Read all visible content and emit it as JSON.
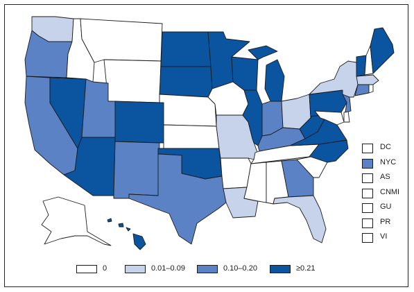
{
  "colors": {
    "class_0": "#ffffff",
    "class_1": "#c6d3ea",
    "class_2": "#5a82c4",
    "class_3": "#0b55a0",
    "border": "#1a1a1a"
  },
  "legend": [
    {
      "label": "0",
      "class": "0"
    },
    {
      "label": "0.01–0.09",
      "class": "1"
    },
    {
      "label": "0.10–0.20",
      "class": "2"
    },
    {
      "label": "≥0.21",
      "class": "3"
    }
  ],
  "territories": [
    {
      "label": "DC",
      "class": "0"
    },
    {
      "label": "NYC",
      "class": "2"
    },
    {
      "label": "AS",
      "class": "0"
    },
    {
      "label": "CNMI",
      "class": "0"
    },
    {
      "label": "GU",
      "class": "0"
    },
    {
      "label": "PR",
      "class": "0"
    },
    {
      "label": "VI",
      "class": "0"
    }
  ],
  "states": {
    "WA": "1",
    "OR": "2",
    "CA": "2",
    "NV": "3",
    "ID": "0",
    "MT": "0",
    "WY": "0",
    "UT": "2",
    "AZ": "3",
    "CO": "3",
    "NM": "2",
    "ND": "3",
    "SD": "3",
    "NE": "0",
    "KS": "0",
    "OK": "3",
    "TX": "2",
    "MN": "3",
    "IA": "0",
    "MO": "1",
    "AR": "0",
    "LA": "1",
    "WI": "3",
    "IL": "3",
    "MS": "0",
    "MI": "3",
    "IN": "2",
    "OH": "1",
    "KY": "2",
    "TN": "0",
    "AL": "0",
    "GA": "2",
    "FL": "1",
    "SC": "0",
    "NC": "3",
    "VA": "3",
    "WV": "3",
    "PA": "3",
    "NY": "1",
    "NJ": "2",
    "DE": "0",
    "MD": "0",
    "CT": "2",
    "RI": "0",
    "MA": "1",
    "VT": "3",
    "NH": "0",
    "ME": "3",
    "AK": "0",
    "HI": "3"
  }
}
